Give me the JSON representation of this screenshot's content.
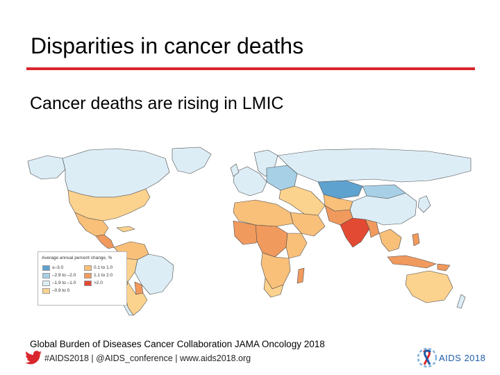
{
  "slide": {
    "title": "Disparities in cancer deaths",
    "subtitle": "Cancer deaths are rising in LMIC",
    "source": "Global Burden of Diseases Cancer Collaboration JAMA Oncology 2018",
    "footer": "#AIDS2018 | @AIDS_conference | www.aids2018.org",
    "accent_color": "#d9262c"
  },
  "map": {
    "legend_title": "Average annual percent change, %",
    "legend": [
      {
        "label": "≤–3.0",
        "color": "#5ea2cf"
      },
      {
        "label": "–2.9 to –2.0",
        "color": "#a7d0e6"
      },
      {
        "label": "–1.9 to –1.0",
        "color": "#dcedf6"
      },
      {
        "label": "–0.9 to 0",
        "color": "#fbd28e"
      },
      {
        "label": "0.1 to 1.0",
        "color": "#f9c07a"
      },
      {
        "label": "1.1 to 2.0",
        "color": "#f19a5e"
      },
      {
        "label": ">2.0",
        "color": "#e34a33"
      }
    ]
  },
  "logo": {
    "text": "AIDS 2018",
    "icon": "aids2018-ribbon-logo-icon"
  },
  "icons": {
    "twitter": "twitter-bird-icon"
  }
}
